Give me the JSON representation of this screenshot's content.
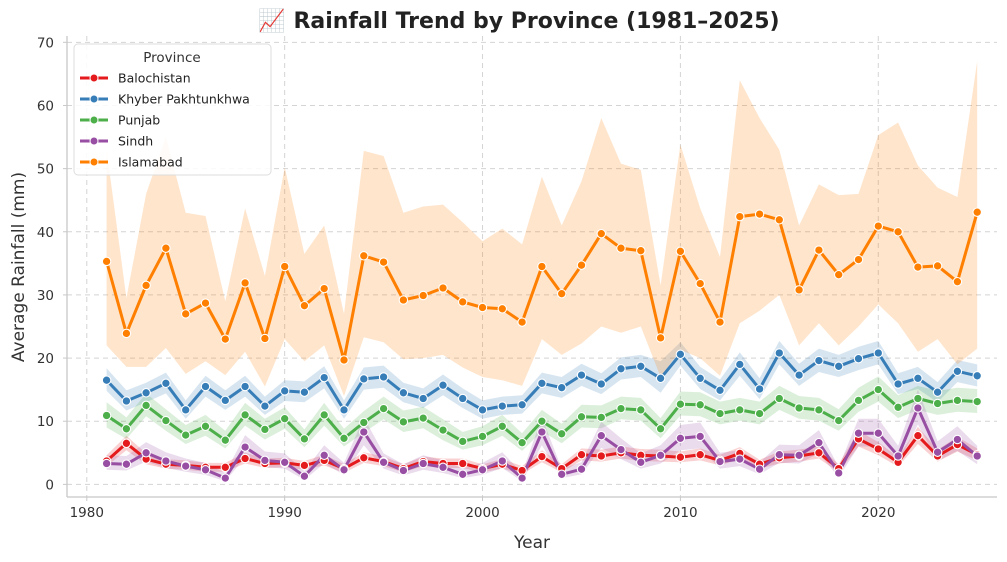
{
  "chart_data": {
    "type": "line",
    "title": "📈 Rainfall Trend by Province (1981–2025)",
    "xlabel": "Year",
    "ylabel": "Average Rainfall (mm)",
    "xlim": [
      1979,
      2026
    ],
    "ylim": [
      -2,
      71
    ],
    "xticks": [
      1980,
      1990,
      2000,
      2010,
      2020
    ],
    "yticks": [
      0,
      10,
      20,
      30,
      40,
      50,
      60,
      70
    ],
    "grid": true,
    "legend": {
      "title": "Province",
      "placement": "top-left"
    },
    "x": [
      1981,
      1982,
      1983,
      1984,
      1985,
      1986,
      1987,
      1988,
      1989,
      1990,
      1991,
      1992,
      1993,
      1994,
      1995,
      1996,
      1997,
      1998,
      1999,
      2000,
      2001,
      2002,
      2003,
      2004,
      2005,
      2006,
      2007,
      2008,
      2009,
      2010,
      2011,
      2012,
      2013,
      2014,
      2015,
      2016,
      2017,
      2018,
      2019,
      2020,
      2021,
      2022,
      2023,
      2024,
      2025
    ],
    "series": [
      {
        "name": "Balochistan",
        "color": "#e41a1c",
        "values": [
          3.7,
          6.5,
          4.0,
          3.2,
          3.0,
          2.7,
          2.7,
          4.1,
          3.3,
          3.4,
          3.0,
          3.8,
          2.5,
          4.2,
          3.6,
          2.5,
          3.6,
          3.3,
          3.3,
          2.5,
          3.2,
          2.2,
          4.4,
          2.5,
          4.7,
          4.5,
          5.0,
          4.6,
          4.5,
          4.3,
          4.7,
          3.8,
          4.9,
          3.2,
          4.2,
          4.5,
          5.0,
          2.5,
          7.2,
          5.6,
          3.5,
          7.7,
          4.5,
          6.3,
          4.7
        ],
        "ci_low": [
          2.9,
          5.4,
          3.2,
          2.5,
          2.3,
          2.0,
          2.0,
          3.3,
          2.6,
          2.7,
          2.3,
          3.0,
          1.8,
          3.4,
          2.9,
          1.9,
          2.9,
          2.6,
          2.6,
          1.9,
          2.5,
          1.6,
          3.5,
          1.9,
          3.8,
          3.6,
          4.1,
          3.7,
          3.6,
          3.5,
          3.8,
          3.0,
          4.0,
          2.5,
          3.3,
          3.6,
          4.1,
          1.9,
          6.0,
          4.6,
          2.8,
          6.4,
          3.6,
          5.2,
          3.8
        ],
        "ci_high": [
          4.6,
          7.7,
          4.9,
          4.0,
          3.8,
          3.4,
          3.4,
          5.0,
          4.1,
          4.2,
          3.7,
          4.7,
          3.2,
          5.1,
          4.4,
          3.2,
          4.4,
          4.1,
          4.1,
          3.2,
          4.0,
          2.9,
          5.4,
          3.2,
          5.7,
          5.5,
          6.0,
          5.6,
          5.5,
          5.2,
          5.7,
          4.7,
          5.9,
          3.9,
          5.2,
          5.5,
          6.0,
          3.2,
          8.5,
          6.7,
          4.3,
          9.1,
          5.5,
          7.5,
          5.7
        ]
      },
      {
        "name": "Khyber Pakhtunkhwa",
        "color": "#377eb8",
        "values": [
          16.5,
          13.2,
          14.5,
          16.0,
          11.8,
          15.5,
          13.3,
          15.5,
          12.4,
          14.8,
          14.6,
          16.9,
          11.8,
          16.7,
          17.0,
          14.5,
          13.6,
          15.7,
          13.6,
          11.8,
          12.4,
          12.6,
          16.0,
          15.3,
          17.3,
          15.9,
          18.3,
          18.7,
          16.8,
          20.6,
          16.8,
          14.9,
          19.0,
          15.1,
          20.8,
          17.3,
          19.6,
          18.7,
          19.9,
          20.8,
          15.9,
          16.8,
          14.6,
          17.9,
          17.2
        ],
        "ci_low": [
          14.8,
          11.7,
          13.0,
          14.4,
          10.4,
          13.9,
          11.8,
          13.9,
          11.0,
          13.2,
          13.0,
          15.2,
          10.4,
          15.0,
          15.3,
          13.0,
          12.1,
          14.1,
          12.1,
          10.4,
          11.0,
          11.2,
          14.4,
          13.7,
          15.6,
          14.3,
          16.6,
          17.0,
          14.5,
          18.8,
          15.1,
          13.3,
          17.2,
          13.5,
          19.0,
          15.6,
          17.8,
          17.0,
          18.1,
          19.0,
          14.3,
          15.1,
          13.0,
          16.2,
          15.5
        ],
        "ci_high": [
          18.4,
          14.9,
          16.1,
          17.7,
          13.3,
          17.2,
          14.9,
          17.2,
          13.9,
          16.5,
          16.3,
          18.7,
          13.3,
          18.5,
          18.8,
          16.1,
          15.2,
          17.4,
          15.2,
          13.3,
          13.9,
          14.1,
          17.7,
          17.0,
          19.1,
          17.6,
          20.1,
          20.5,
          19.5,
          22.5,
          18.6,
          16.6,
          20.9,
          16.8,
          22.7,
          19.1,
          21.5,
          20.5,
          21.8,
          22.7,
          17.6,
          18.6,
          16.2,
          19.7,
          19.0
        ]
      },
      {
        "name": "Punjab",
        "color": "#4daf4a",
        "values": [
          10.9,
          8.8,
          12.5,
          10.1,
          7.8,
          9.2,
          7.0,
          11.0,
          8.7,
          10.4,
          7.2,
          11.0,
          7.3,
          9.8,
          12.0,
          9.9,
          10.5,
          8.6,
          6.8,
          7.6,
          9.2,
          6.6,
          10.0,
          8.0,
          10.7,
          10.6,
          12.0,
          11.8,
          8.8,
          12.7,
          12.6,
          11.2,
          11.8,
          11.2,
          13.6,
          12.1,
          11.8,
          10.1,
          13.3,
          15.0,
          12.2,
          13.6,
          12.8,
          13.3,
          13.1
        ],
        "ci_low": [
          9.0,
          7.2,
          10.8,
          8.5,
          6.4,
          7.7,
          5.7,
          9.3,
          7.1,
          8.8,
          5.9,
          9.3,
          6.0,
          8.2,
          10.3,
          8.3,
          8.9,
          7.0,
          5.5,
          6.2,
          7.7,
          5.3,
          8.4,
          6.5,
          9.0,
          8.9,
          10.3,
          10.1,
          7.3,
          10.9,
          10.8,
          9.5,
          10.1,
          9.5,
          11.8,
          10.4,
          10.1,
          8.5,
          11.5,
          13.1,
          10.5,
          11.8,
          11.0,
          11.5,
          11.3
        ],
        "ci_high": [
          13.0,
          10.6,
          14.4,
          11.9,
          9.4,
          11.0,
          8.5,
          12.9,
          10.4,
          12.2,
          8.7,
          12.9,
          8.8,
          11.6,
          13.9,
          11.7,
          12.3,
          10.3,
          8.3,
          9.2,
          11.0,
          8.1,
          11.8,
          9.6,
          12.6,
          12.5,
          13.9,
          13.7,
          10.5,
          14.7,
          14.6,
          13.1,
          13.7,
          13.1,
          15.6,
          14.0,
          13.7,
          11.9,
          15.3,
          17.1,
          14.1,
          15.6,
          14.8,
          15.3,
          15.1
        ]
      },
      {
        "name": "Sindh",
        "color": "#984ea3",
        "values": [
          3.3,
          3.2,
          5.0,
          3.7,
          2.9,
          2.3,
          1.0,
          5.9,
          3.8,
          3.5,
          1.3,
          4.6,
          2.3,
          8.3,
          3.5,
          2.2,
          3.3,
          2.7,
          1.6,
          2.3,
          3.7,
          1.0,
          8.3,
          1.6,
          2.4,
          7.7,
          5.5,
          3.5,
          4.6,
          7.3,
          7.6,
          3.6,
          4.0,
          2.4,
          4.7,
          4.6,
          6.6,
          1.8,
          8.1,
          8.1,
          4.5,
          12.1,
          5.1,
          7.1,
          4.5
        ],
        "ci_low": [
          2.3,
          2.2,
          3.6,
          2.6,
          2.0,
          1.5,
          0.5,
          4.3,
          2.7,
          2.5,
          0.7,
          3.3,
          1.5,
          6.2,
          2.5,
          1.4,
          2.3,
          1.8,
          1.0,
          1.5,
          2.6,
          0.5,
          6.2,
          1.0,
          1.6,
          5.8,
          4.0,
          2.5,
          3.3,
          5.4,
          5.7,
          2.5,
          2.9,
          1.6,
          3.4,
          3.3,
          4.9,
          1.1,
          6.0,
          6.0,
          3.2,
          9.5,
          3.7,
          5.3,
          3.2
        ],
        "ci_high": [
          4.6,
          4.5,
          6.7,
          5.1,
          4.1,
          3.4,
          1.8,
          7.8,
          5.2,
          4.9,
          2.1,
          6.2,
          3.4,
          10.6,
          4.9,
          3.2,
          4.6,
          3.8,
          2.5,
          3.4,
          5.1,
          1.8,
          10.6,
          2.5,
          3.5,
          9.9,
          7.3,
          4.9,
          6.2,
          9.4,
          9.8,
          5.0,
          5.4,
          3.5,
          6.3,
          6.2,
          8.6,
          2.8,
          10.4,
          10.4,
          6.1,
          15.0,
          6.8,
          9.2,
          6.1
        ]
      },
      {
        "name": "Islamabad",
        "color": "#ff7f00",
        "values": [
          35.3,
          23.9,
          31.5,
          37.4,
          27.0,
          28.7,
          23.0,
          31.9,
          23.1,
          34.5,
          28.3,
          31.0,
          19.7,
          36.2,
          35.2,
          29.2,
          29.9,
          31.1,
          28.9,
          28.0,
          27.8,
          25.7,
          34.5,
          30.2,
          34.7,
          39.7,
          37.4,
          37.0,
          23.2,
          36.9,
          31.8,
          25.7,
          42.4,
          42.8,
          41.9,
          30.8,
          37.1,
          33.2,
          35.6,
          40.9,
          40.0,
          34.4,
          34.6,
          32.1,
          43.1
        ],
        "ci_low": [
          22.0,
          18.6,
          18.6,
          21.6,
          17.5,
          19.5,
          17.3,
          21.0,
          15.5,
          23.0,
          19.5,
          22.0,
          14.0,
          23.3,
          22.5,
          19.8,
          20.0,
          20.5,
          18.5,
          17.0,
          16.5,
          15.6,
          23.0,
          20.5,
          22.3,
          25.0,
          24.0,
          25.0,
          17.0,
          21.3,
          20.0,
          17.2,
          25.5,
          27.5,
          30.0,
          22.0,
          25.5,
          22.0,
          25.0,
          28.5,
          25.5,
          21.0,
          23.0,
          19.0,
          21.5
        ],
        "ci_high": [
          53.0,
          29.5,
          46.0,
          55.0,
          43.0,
          42.5,
          29.0,
          43.7,
          33.0,
          50.2,
          36.5,
          41.0,
          27.0,
          52.8,
          52.0,
          43.0,
          44.0,
          44.3,
          41.5,
          38.5,
          40.5,
          38.0,
          48.7,
          41.0,
          48.0,
          58.0,
          50.8,
          49.8,
          31.5,
          53.8,
          43.7,
          36.0,
          64.0,
          58.0,
          53.0,
          41.0,
          47.5,
          45.8,
          46.0,
          55.3,
          57.3,
          50.5,
          47.0,
          45.5,
          67.0
        ]
      }
    ]
  }
}
